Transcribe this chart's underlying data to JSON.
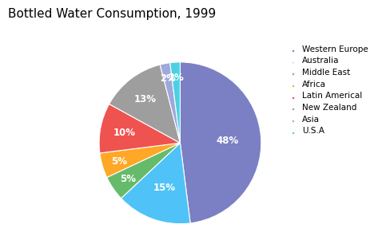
{
  "title": "Bottled Water Consumption, 1999",
  "values": [
    48,
    15,
    5,
    5,
    10,
    13,
    2,
    2
  ],
  "colors": [
    "#7b7fc4",
    "#4fc3f7",
    "#66bb6a",
    "#ffa726",
    "#ef5350",
    "#9e9e9e",
    "#9fa8da",
    "#4dd0e1"
  ],
  "pct_labels": [
    "48%",
    "15%",
    "5%",
    "5%",
    "10%",
    "13%",
    "2%",
    "2%"
  ],
  "legend_labels": [
    "Western Europe",
    "Australia",
    "Middle East",
    "Africa",
    "Latin Americal",
    "New Zealand",
    "Asia",
    "U.S.A"
  ],
  "legend_colors": [
    "#7b7fc4",
    "#4fc3f7",
    "#66bb6a",
    "#ffa726",
    "#ef5350",
    "#9e9e9e",
    "#9fa8da",
    "#4dd0e1"
  ],
  "startangle": 90,
  "title_fontsize": 11,
  "background_color": "#ffffff"
}
